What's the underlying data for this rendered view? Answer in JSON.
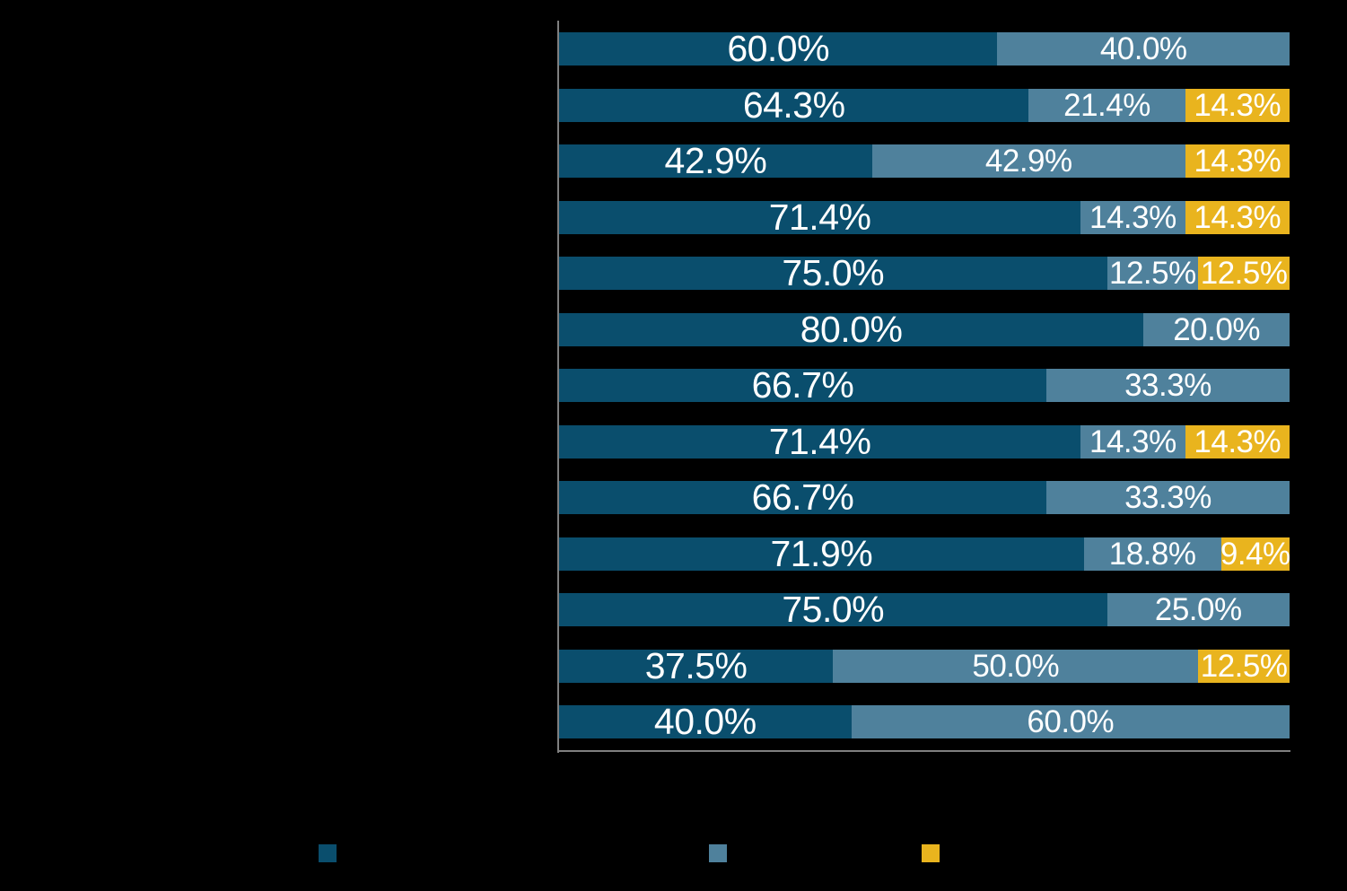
{
  "colors": {
    "background": "#000000",
    "axis": "#7F7F7F",
    "label_text": "#FFFFFF"
  },
  "chart_data": {
    "type": "bar",
    "orientation": "horizontal",
    "stacked": true,
    "value_axis": {
      "min": 0,
      "max": 100,
      "unit": "%"
    },
    "grid": false,
    "num_rows": 13,
    "category_labels_visible": false,
    "legend_position": "bottom",
    "legend_text_visible": false,
    "series": [
      {
        "id": "series-1",
        "color": "#0A4E6D",
        "label_color": "#FFFFFF"
      },
      {
        "id": "series-2",
        "color": "#4F819C",
        "label_color": "#FFFFFF"
      },
      {
        "id": "series-3",
        "color": "#E9B41E",
        "label_color": "#FFFFFF"
      }
    ],
    "rows": [
      {
        "segments": [
          {
            "series": 0,
            "value": 60.0,
            "label": "60.0%"
          },
          {
            "series": 1,
            "value": 40.0,
            "label": "40.0%"
          }
        ]
      },
      {
        "segments": [
          {
            "series": 0,
            "value": 64.3,
            "label": "64.3%"
          },
          {
            "series": 1,
            "value": 21.4,
            "label": "21.4%"
          },
          {
            "series": 2,
            "value": 14.3,
            "label": "14.3%"
          }
        ]
      },
      {
        "segments": [
          {
            "series": 0,
            "value": 42.9,
            "label": "42.9%"
          },
          {
            "series": 1,
            "value": 42.9,
            "label": "42.9%"
          },
          {
            "series": 2,
            "value": 14.3,
            "label": "14.3%"
          }
        ]
      },
      {
        "segments": [
          {
            "series": 0,
            "value": 71.4,
            "label": "71.4%"
          },
          {
            "series": 1,
            "value": 14.3,
            "label": "14.3%"
          },
          {
            "series": 2,
            "value": 14.3,
            "label": "14.3%"
          }
        ]
      },
      {
        "segments": [
          {
            "series": 0,
            "value": 75.0,
            "label": "75.0%"
          },
          {
            "series": 1,
            "value": 12.5,
            "label": "12.5%"
          },
          {
            "series": 2,
            "value": 12.5,
            "label": "12.5%"
          }
        ]
      },
      {
        "segments": [
          {
            "series": 0,
            "value": 80.0,
            "label": "80.0%"
          },
          {
            "series": 1,
            "value": 20.0,
            "label": "20.0%"
          }
        ]
      },
      {
        "segments": [
          {
            "series": 0,
            "value": 66.7,
            "label": "66.7%"
          },
          {
            "series": 1,
            "value": 33.3,
            "label": "33.3%"
          }
        ]
      },
      {
        "segments": [
          {
            "series": 0,
            "value": 71.4,
            "label": "71.4%"
          },
          {
            "series": 1,
            "value": 14.3,
            "label": "14.3%"
          },
          {
            "series": 2,
            "value": 14.3,
            "label": "14.3%"
          }
        ]
      },
      {
        "segments": [
          {
            "series": 0,
            "value": 66.7,
            "label": "66.7%"
          },
          {
            "series": 1,
            "value": 33.3,
            "label": "33.3%"
          }
        ]
      },
      {
        "segments": [
          {
            "series": 0,
            "value": 71.9,
            "label": "71.9%"
          },
          {
            "series": 1,
            "value": 18.8,
            "label": "18.8%"
          },
          {
            "series": 2,
            "value": 9.4,
            "label": "9.4%"
          }
        ]
      },
      {
        "segments": [
          {
            "series": 0,
            "value": 75.0,
            "label": "75.0%"
          },
          {
            "series": 1,
            "value": 25.0,
            "label": "25.0%"
          }
        ]
      },
      {
        "segments": [
          {
            "series": 0,
            "value": 37.5,
            "label": "37.5%"
          },
          {
            "series": 1,
            "value": 50.0,
            "label": "50.0%"
          },
          {
            "series": 2,
            "value": 12.5,
            "label": "12.5%"
          }
        ]
      },
      {
        "segments": [
          {
            "series": 0,
            "value": 40.0,
            "label": "40.0%"
          },
          {
            "series": 1,
            "value": 60.0,
            "label": "60.0%"
          }
        ]
      }
    ]
  },
  "legend": {
    "swatches": [
      {
        "series": "series-1",
        "color": "#0A4E6D"
      },
      {
        "series": "series-2",
        "color": "#4F819C"
      },
      {
        "series": "series-3",
        "color": "#E9B41E"
      }
    ]
  }
}
